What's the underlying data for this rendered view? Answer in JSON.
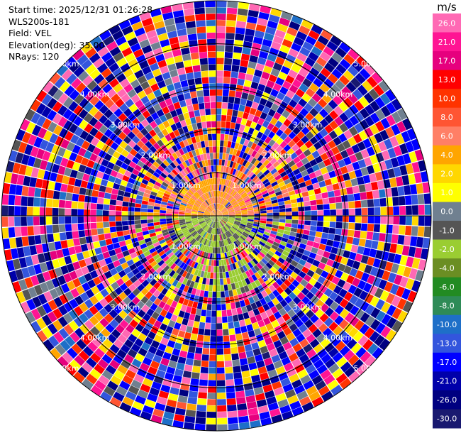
{
  "info": {
    "start_time": "Start time: 2025/12/31 01:26:28",
    "site": "WLS200s-181",
    "field": "Field: VEL",
    "elevation": "Elevation(deg): 35.00",
    "nrays": "NRays: 120"
  },
  "colorbar": {
    "unit": "m/s",
    "ticks": [
      "26.0",
      "21.0",
      "17.0",
      "13.0",
      "10.0",
      "8.0",
      "6.0",
      "4.0",
      "2.0",
      "1.0",
      "0.0",
      "-1.0",
      "-2.0",
      "-4.0",
      "-6.0",
      "-8.0",
      "-10.0",
      "-13.0",
      "-17.0",
      "-21.0",
      "-26.0",
      "-30.0"
    ],
    "colors": [
      "#ff69b4",
      "#ff1493",
      "#e6007e",
      "#ff0000",
      "#ff3300",
      "#ff5533",
      "#ff7f66",
      "#ffa500",
      "#ffd700",
      "#ffff00",
      "#708090",
      "#555555",
      "#9acd32",
      "#6b8e23",
      "#228b22",
      "#2e8b57",
      "#1e6fc8",
      "#3355dd",
      "#0000ff",
      "#0000aa",
      "#000080",
      "#191970"
    ]
  },
  "chart_data": {
    "type": "heatmap",
    "field": "VEL",
    "units": "m/s",
    "nrays": 120,
    "elevation_deg": 35.0,
    "range_ring_labels": [
      "1.00km",
      "2.00km",
      "3.00km",
      "4.00km",
      "5.00km"
    ],
    "range_rings_km": [
      1,
      2,
      3,
      4,
      5
    ],
    "max_range_km": 5.0,
    "value_range": [
      -30.0,
      26.0
    ],
    "near_field_velocity_m_s": {
      "north_half": [
        2,
        6
      ],
      "south_half": [
        -4,
        -1
      ]
    }
  }
}
